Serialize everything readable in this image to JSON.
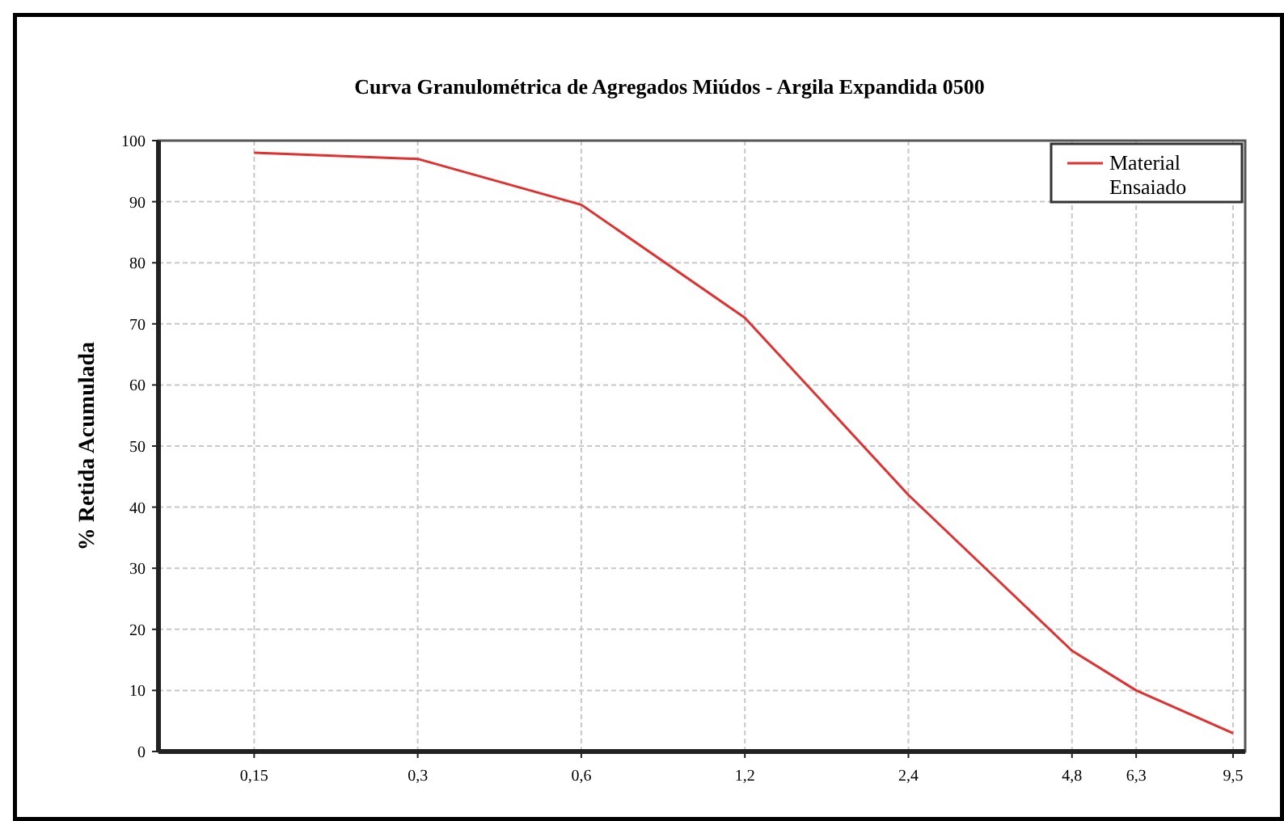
{
  "chart_data": {
    "type": "line",
    "title": "Curva Granulométrica de Agregados Miúdos - Argila Expandida 0500",
    "ylabel": "% Retida Acumulada",
    "x": [
      0.15,
      0.3,
      0.6,
      1.2,
      2.4,
      4.8,
      6.3,
      9.5
    ],
    "series": [
      {
        "name": "Material Ensaiado",
        "color": "#e03030",
        "values": [
          98,
          97,
          89.5,
          71,
          42,
          16.5,
          10,
          3
        ]
      }
    ],
    "log": "x",
    "xlim": [
      0.1,
      10
    ],
    "xticks": [
      {
        "value": 0.15,
        "label": "0,15"
      },
      {
        "value": 0.3,
        "label": "0,3"
      },
      {
        "value": 0.6,
        "label": "0,6"
      },
      {
        "value": 1.2,
        "label": "1,2"
      },
      {
        "value": 2.4,
        "label": "2,4"
      },
      {
        "value": 4.8,
        "label": "4,8"
      },
      {
        "value": 6.3,
        "label": "6,3"
      },
      {
        "value": 9.5,
        "label": "9,5"
      }
    ],
    "ylim": [
      0,
      100
    ],
    "yticks": [
      0,
      10,
      20,
      30,
      40,
      50,
      60,
      70,
      80,
      90,
      100
    ],
    "grid": true,
    "legend": "top right",
    "marker": "none",
    "line_style": "solid"
  }
}
